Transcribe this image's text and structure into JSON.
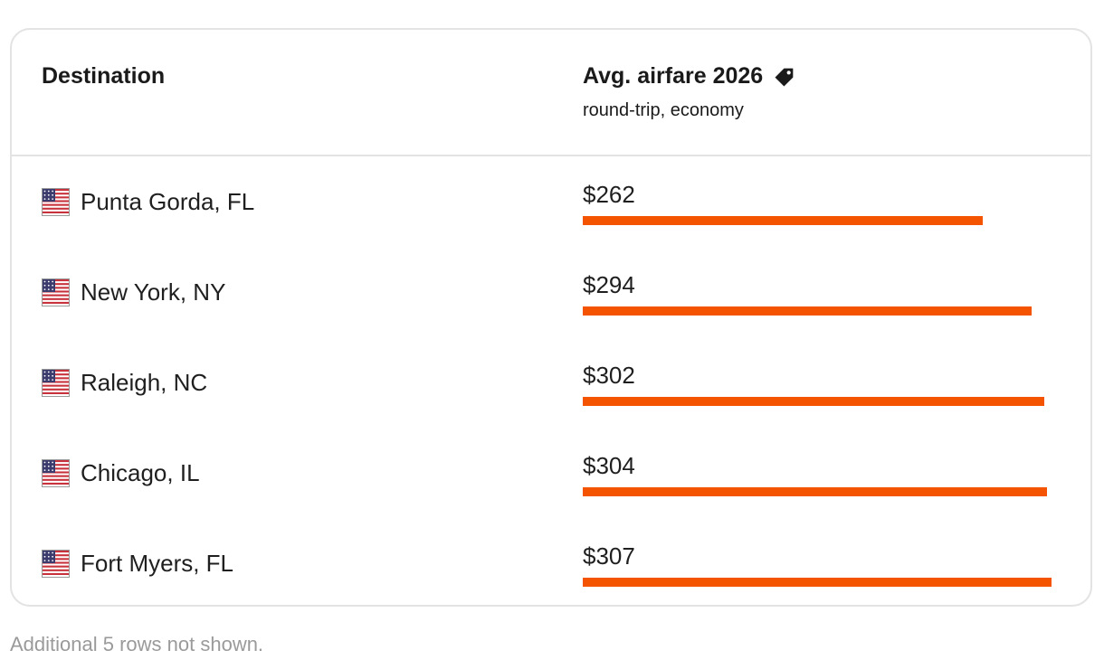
{
  "table": {
    "header": {
      "destination": "Destination",
      "fare_title": "Avg. airfare 2026",
      "fare_subtitle": "round-trip, economy",
      "fare_icon": "price-tag-icon"
    },
    "footnote": "Additional 5 rows not shown."
  },
  "chart_data": {
    "type": "bar",
    "orientation": "horizontal",
    "title": "Avg. airfare 2026",
    "subtitle": "round-trip, economy",
    "categories": [
      "Punta Gorda, FL",
      "New York, NY",
      "Raleigh, NC",
      "Chicago, IL",
      "Fort Myers, FL"
    ],
    "values": [
      262,
      294,
      302,
      304,
      307
    ],
    "labels": [
      "$262",
      "$294",
      "$302",
      "$304",
      "$307"
    ],
    "unit": "USD",
    "bar_color": "#f45300",
    "category_icon": "us-flag-icon"
  }
}
